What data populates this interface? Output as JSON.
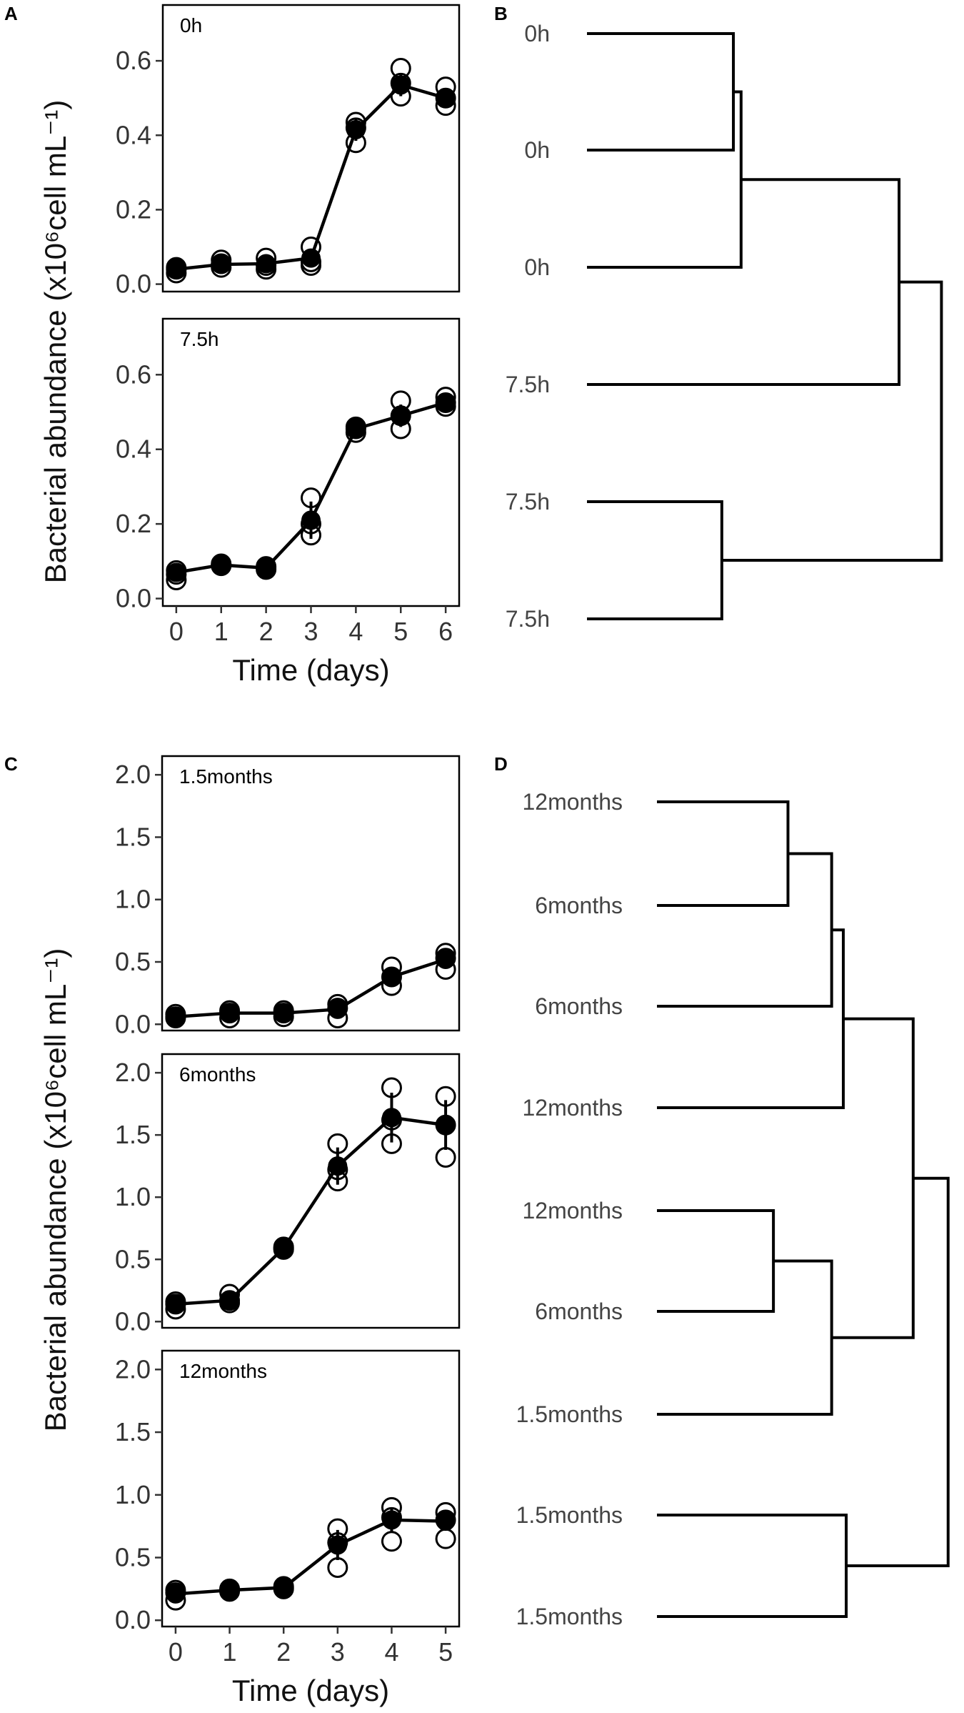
{
  "panel_letters": {
    "a": "A",
    "b": "B",
    "c": "C",
    "d": "D"
  },
  "chart_data": [
    {
      "id": "A",
      "type": "line",
      "ylabel": "Bacterial abundance (x10⁶cell mL⁻¹)",
      "xlabel": "Time (days)",
      "x": [
        0,
        1,
        2,
        3,
        4,
        5,
        6
      ],
      "x_ticks": [
        "0",
        "1",
        "2",
        "3",
        "4",
        "5",
        "6"
      ],
      "xlim": [
        -0.3,
        6.3
      ],
      "facets": [
        {
          "label": "0h",
          "ylim": [
            -0.02,
            0.75
          ],
          "y_ticks": [
            "0.0",
            "0.2",
            "0.4",
            "0.6"
          ],
          "mean": [
            0.04,
            0.053,
            0.055,
            0.07,
            0.415,
            0.535,
            0.5
          ],
          "sd": [
            0.005,
            0.008,
            0.01,
            0.02,
            0.03,
            0.03,
            0.02
          ],
          "replicates": [
            [
              0.03,
              0.04,
              0.045
            ],
            [
              0.045,
              0.055,
              0.065
            ],
            [
              0.04,
              0.05,
              0.07
            ],
            [
              0.05,
              0.06,
              0.1
            ],
            [
              0.38,
              0.42,
              0.435
            ],
            [
              0.505,
              0.54,
              0.58
            ],
            [
              0.48,
              0.5,
              0.53
            ]
          ]
        },
        {
          "label": "7.5h",
          "ylim": [
            -0.02,
            0.75
          ],
          "y_ticks": [
            "0.0",
            "0.2",
            "0.4",
            "0.6"
          ],
          "mean": [
            0.07,
            0.09,
            0.082,
            0.21,
            0.455,
            0.49,
            0.525
          ],
          "sd": [
            0.008,
            0.004,
            0.004,
            0.05,
            0.01,
            0.03,
            0.01
          ],
          "replicates": [
            [
              0.05,
              0.065,
              0.075
            ],
            [
              0.088,
              0.09,
              0.093
            ],
            [
              0.078,
              0.082,
              0.086
            ],
            [
              0.17,
              0.2,
              0.27
            ],
            [
              0.445,
              0.455,
              0.46
            ],
            [
              0.455,
              0.49,
              0.53
            ],
            [
              0.515,
              0.525,
              0.54
            ]
          ]
        }
      ]
    },
    {
      "id": "C",
      "type": "line",
      "ylabel": "Bacterial abundance (x10⁶cell mL⁻¹)",
      "xlabel": "Time (days)",
      "x": [
        0,
        1,
        2,
        3,
        4,
        5
      ],
      "x_ticks": [
        "0",
        "1",
        "2",
        "3",
        "4",
        "5"
      ],
      "xlim": [
        -0.25,
        5.25
      ],
      "facets": [
        {
          "label": "1.5months",
          "ylim": [
            -0.05,
            2.15
          ],
          "y_ticks": [
            "0.0",
            "0.5",
            "1.0",
            "1.5",
            "2.0"
          ],
          "mean": [
            0.06,
            0.09,
            0.09,
            0.12,
            0.38,
            0.52
          ],
          "sd": [
            0.01,
            0.03,
            0.03,
            0.05,
            0.06,
            0.06
          ],
          "replicates": [
            [
              0.05,
              0.06,
              0.08
            ],
            [
              0.05,
              0.09,
              0.11
            ],
            [
              0.06,
              0.09,
              0.11
            ],
            [
              0.05,
              0.13,
              0.16
            ],
            [
              0.31,
              0.38,
              0.46
            ],
            [
              0.44,
              0.53,
              0.57
            ]
          ]
        },
        {
          "label": "6months",
          "ylim": [
            -0.05,
            2.15
          ],
          "y_ticks": [
            "0.0",
            "0.5",
            "1.0",
            "1.5",
            "2.0"
          ],
          "mean": [
            0.14,
            0.17,
            0.59,
            1.25,
            1.64,
            1.58
          ],
          "sd": [
            0.03,
            0.04,
            0.02,
            0.15,
            0.2,
            0.2
          ],
          "replicates": [
            [
              0.1,
              0.14,
              0.16
            ],
            [
              0.15,
              0.17,
              0.22
            ],
            [
              0.58,
              0.59,
              0.6
            ],
            [
              1.13,
              1.22,
              1.43
            ],
            [
              1.43,
              1.62,
              1.88
            ],
            [
              1.32,
              1.58,
              1.81
            ]
          ]
        },
        {
          "label": "12months",
          "ylim": [
            -0.05,
            2.15
          ],
          "y_ticks": [
            "0.0",
            "0.5",
            "1.0",
            "1.5",
            "2.0"
          ],
          "mean": [
            0.21,
            0.24,
            0.26,
            0.6,
            0.8,
            0.79
          ],
          "sd": [
            0.03,
            0.01,
            0.01,
            0.12,
            0.1,
            0.07
          ],
          "replicates": [
            [
              0.16,
              0.22,
              0.24
            ],
            [
              0.23,
              0.24,
              0.25
            ],
            [
              0.25,
              0.26,
              0.27
            ],
            [
              0.42,
              0.62,
              0.73
            ],
            [
              0.63,
              0.82,
              0.9
            ],
            [
              0.65,
              0.8,
              0.86
            ]
          ]
        }
      ]
    },
    {
      "id": "B",
      "type": "dendrogram",
      "leaves": [
        "0h",
        "0h",
        "0h",
        "7.5h",
        "7.5h",
        "7.5h"
      ],
      "merges": [
        {
          "a": "L0",
          "b": "L1",
          "height": 0.38
        },
        {
          "a": "N1",
          "b": "L2",
          "height": 0.4
        },
        {
          "a": "L4",
          "b": "L5",
          "height": 0.35
        },
        {
          "a": "N2",
          "b": "L3",
          "height": 0.81
        },
        {
          "a": "N4",
          "b": "N3",
          "height": 0.92
        }
      ],
      "max_height": 0.96
    },
    {
      "id": "D",
      "type": "dendrogram",
      "leaves": [
        "12months",
        "6months",
        "6months",
        "12months",
        "12months",
        "6months",
        "1.5months",
        "1.5months",
        "1.5months"
      ],
      "merges": [
        {
          "a": "L0",
          "b": "L1",
          "height": 0.45
        },
        {
          "a": "N1",
          "b": "L2",
          "height": 0.6
        },
        {
          "a": "N2",
          "b": "L3",
          "height": 0.64
        },
        {
          "a": "L4",
          "b": "L5",
          "height": 0.4
        },
        {
          "a": "N4",
          "b": "L6",
          "height": 0.6
        },
        {
          "a": "N3",
          "b": "N5",
          "height": 0.88
        },
        {
          "a": "L7",
          "b": "L8",
          "height": 0.65
        },
        {
          "a": "N6",
          "b": "N7",
          "height": 1.0
        }
      ],
      "max_height": 1.03
    }
  ]
}
